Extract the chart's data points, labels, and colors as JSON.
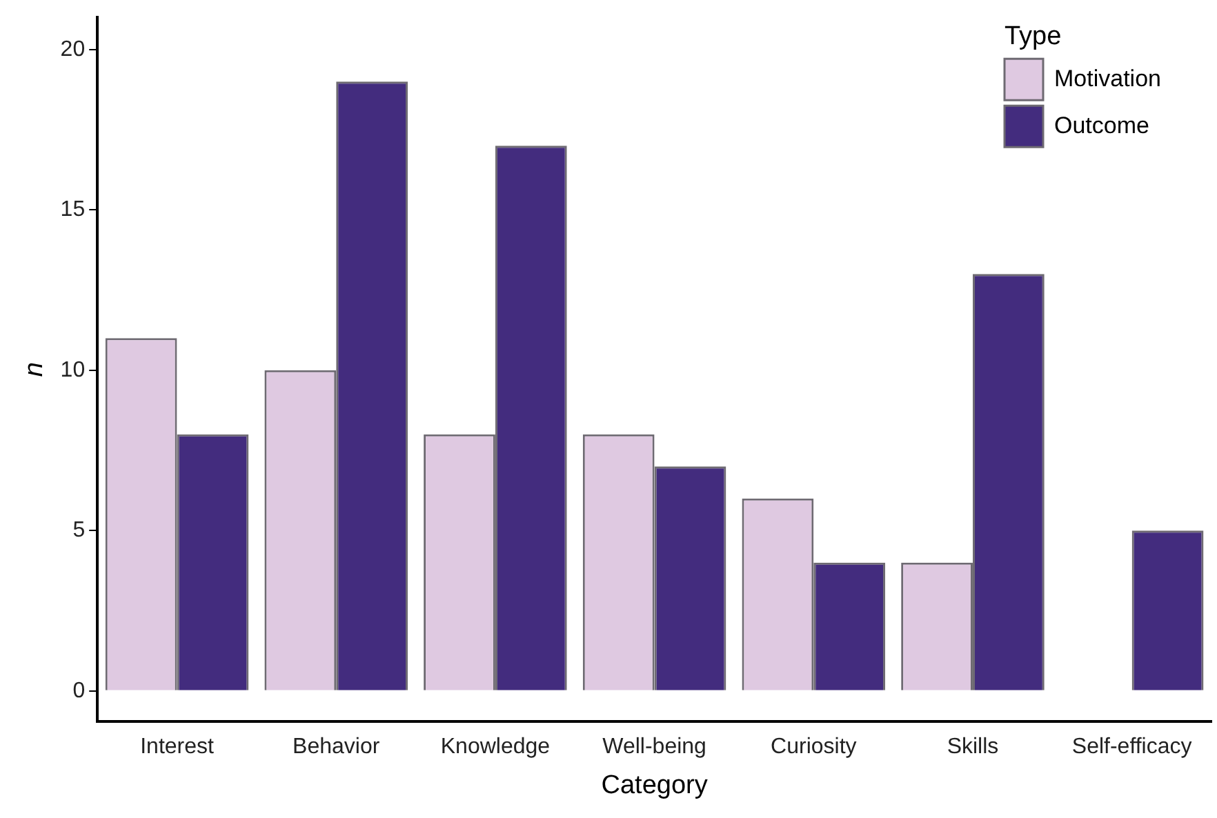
{
  "chart_data": {
    "type": "bar",
    "xlabel": "Category",
    "ylabel": "n",
    "legend_title": "Type",
    "categories": [
      "Interest",
      "Behavior",
      "Knowledge",
      "Well-being",
      "Curiosity",
      "Skills",
      "Self-efficacy"
    ],
    "series": [
      {
        "name": "Motivation",
        "color": "#dfc9e1",
        "values": [
          11,
          10,
          8,
          8,
          6,
          4,
          0
        ]
      },
      {
        "name": "Outcome",
        "color": "#432c7e",
        "values": [
          8,
          19,
          17,
          7,
          4,
          13,
          5
        ]
      }
    ],
    "ylim": [
      -0.95,
      21
    ],
    "yticks": [
      0,
      5,
      10,
      15,
      20
    ],
    "grid": false,
    "legend": "top right"
  }
}
